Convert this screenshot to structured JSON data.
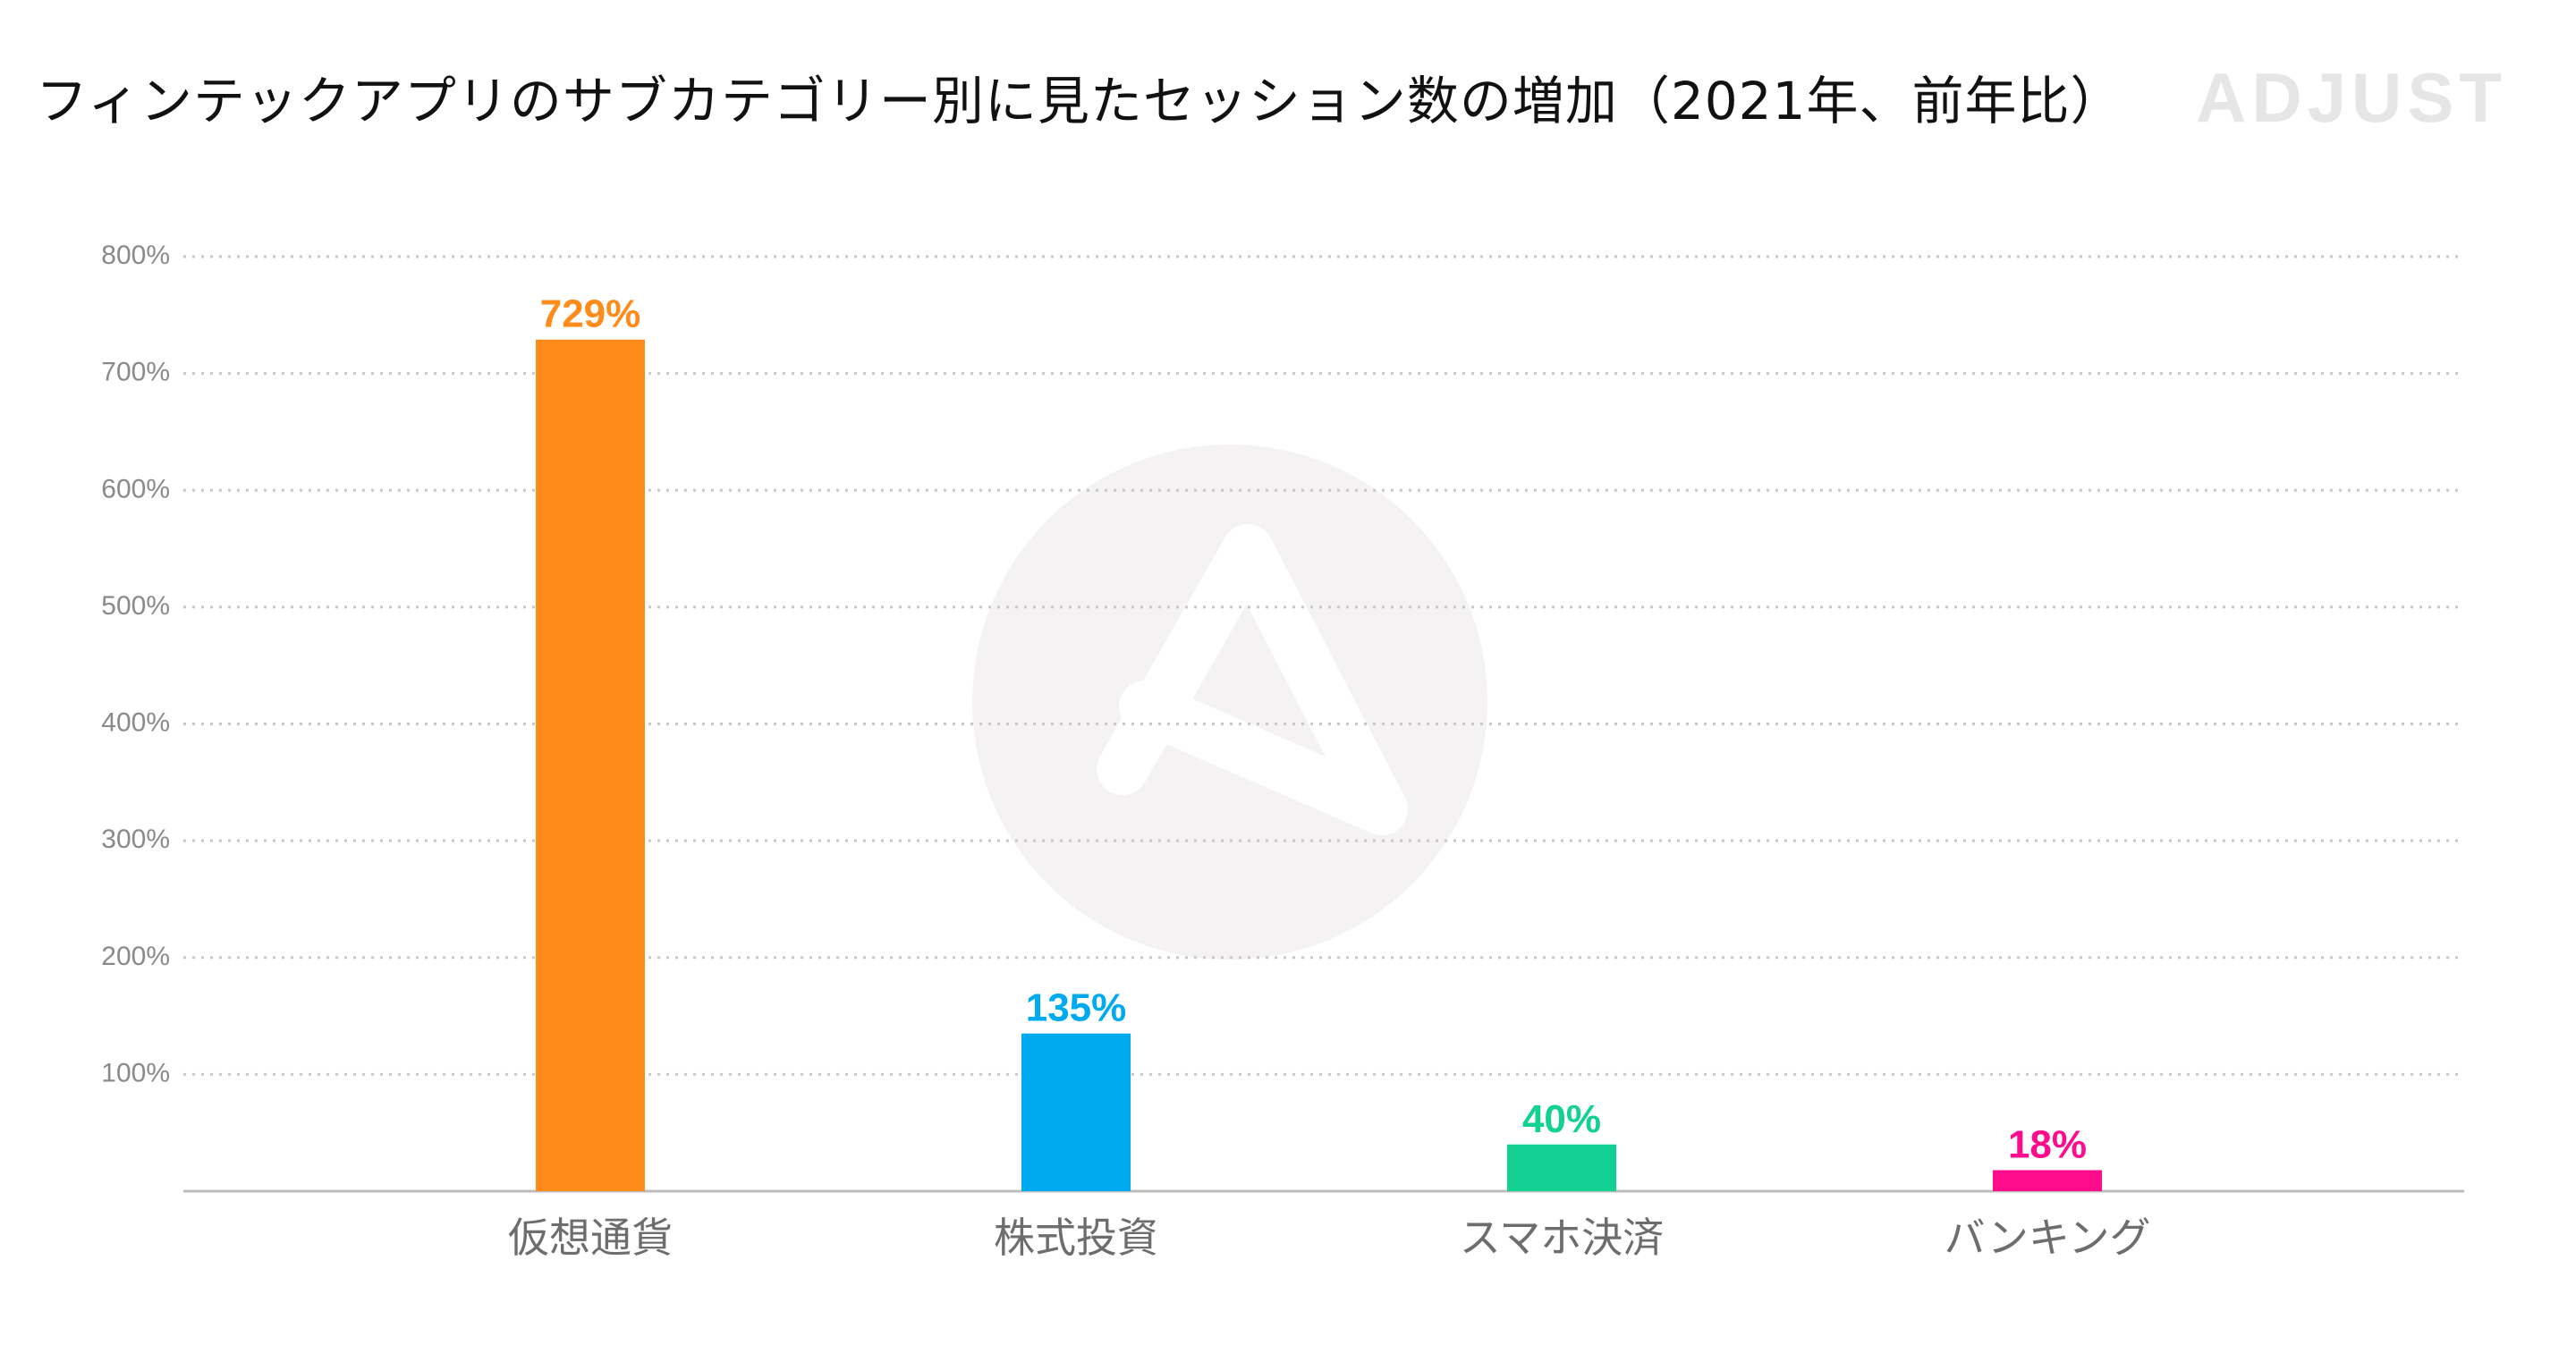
{
  "title": "フィンテックアプリのサブカテゴリー別に見たセッション数の増加（2021年、前年比）",
  "brand": "ADJUST",
  "colors": {
    "crypto": "#ff8c1a",
    "stocks": "#00aaf0",
    "payments": "#13d192",
    "banking": "#ff0c8d",
    "grid": "#c8c8c8",
    "axis": "#bdbdbd",
    "tick_text": "#8a8a8a",
    "category_text": "#6d6d6d",
    "watermark": "#f4f2f2"
  },
  "chart_data": {
    "type": "bar",
    "title": "フィンテックアプリのサブカテゴリー別に見たセッション数の増加（2021年、前年比）",
    "xlabel": "",
    "ylabel": "",
    "categories": [
      "仮想通貨",
      "株式投資",
      "スマホ決済",
      "バンキング"
    ],
    "values": [
      729,
      135,
      40,
      18
    ],
    "data_labels": [
      "729%",
      "135%",
      "40%",
      "18%"
    ],
    "bar_colors": [
      "#ff8c1a",
      "#00aaf0",
      "#13d192",
      "#ff0c8d"
    ],
    "ylim": [
      0,
      800
    ],
    "yticks": [
      100,
      200,
      300,
      400,
      500,
      600,
      700,
      800
    ],
    "ytick_labels": [
      "100%",
      "200%",
      "300%",
      "400%",
      "500%",
      "600%",
      "700%",
      "800%"
    ],
    "grid": true,
    "grid_style": "dotted",
    "legend": "none"
  }
}
